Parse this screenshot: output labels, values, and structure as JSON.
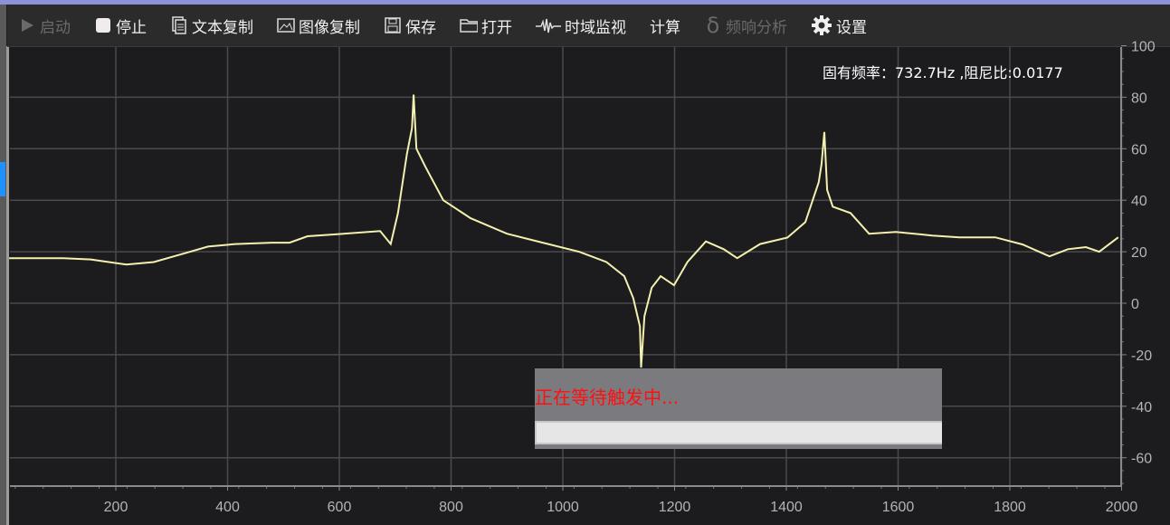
{
  "toolbar": {
    "items": [
      {
        "label": "启动",
        "icon": "play-icon",
        "enabled": false
      },
      {
        "label": "停止",
        "icon": "stop-icon",
        "enabled": true
      },
      {
        "label": "文本复制",
        "icon": "copy-text-icon",
        "enabled": true
      },
      {
        "label": "图像复制",
        "icon": "image-icon",
        "enabled": true
      },
      {
        "label": "保存",
        "icon": "save-icon",
        "enabled": true
      },
      {
        "label": "打开",
        "icon": "folder-icon",
        "enabled": true
      },
      {
        "label": "时域监视",
        "icon": "waveform-icon",
        "enabled": true
      },
      {
        "label": "计算",
        "icon": "",
        "enabled": true
      },
      {
        "label": "频响分析",
        "icon": "delta-icon",
        "enabled": false
      },
      {
        "label": "设置",
        "icon": "gear-icon",
        "enabled": true
      }
    ]
  },
  "info_text": "固有频率：732.7Hz ,阻尼比:0.0177",
  "overlay": {
    "message": "正在等待触发中...",
    "progress": 0
  },
  "colors": {
    "line": "#f3f0b0",
    "grid": "#4a4a4c",
    "background": "#1c1c1e",
    "message": "#ff1010",
    "accent": "#1e90ff"
  },
  "chart_data": {
    "type": "line",
    "xlim": [
      10,
      2010
    ],
    "ylim": [
      -71,
      100
    ],
    "grid": true,
    "y_axis_side": "right",
    "xticks": [
      200,
      400,
      600,
      800,
      1000,
      1200,
      1400,
      1600,
      1800,
      2000
    ],
    "yticks": [
      100,
      80,
      60,
      40,
      20,
      0,
      -20,
      -40,
      -60
    ],
    "series": [
      {
        "x": [
          9,
          106,
          155,
          219,
          268,
          317,
          365,
          414,
          479,
          511,
          543,
          608,
          673,
          692,
          705,
          721,
          730,
          733,
          738,
          754,
          786,
          835,
          900,
          964,
          1029,
          1078,
          1110,
          1126,
          1138,
          1140,
          1146,
          1159,
          1175,
          1199,
          1223,
          1256,
          1288,
          1312,
          1353,
          1402,
          1434,
          1458,
          1463,
          1468,
          1473,
          1483,
          1515,
          1548,
          1596,
          1661,
          1710,
          1774,
          1823,
          1871,
          1904,
          1936,
          1960,
          1994
        ],
        "y": [
          17.5,
          17.5,
          17,
          15,
          16,
          19,
          22,
          23,
          23.5,
          23.5,
          26,
          27,
          28,
          23,
          35,
          58,
          68,
          81,
          60,
          53,
          40,
          33,
          27,
          23.5,
          20,
          16,
          10.5,
          2,
          -9,
          -25,
          -5,
          6,
          10.5,
          7,
          16,
          24,
          21,
          17.5,
          23,
          25.5,
          31.5,
          47,
          54,
          66.5,
          44,
          37.5,
          35,
          27,
          27.7,
          26.3,
          25.6,
          25.6,
          22.8,
          18.2,
          21,
          21.8,
          20,
          25.6
        ]
      }
    ]
  }
}
